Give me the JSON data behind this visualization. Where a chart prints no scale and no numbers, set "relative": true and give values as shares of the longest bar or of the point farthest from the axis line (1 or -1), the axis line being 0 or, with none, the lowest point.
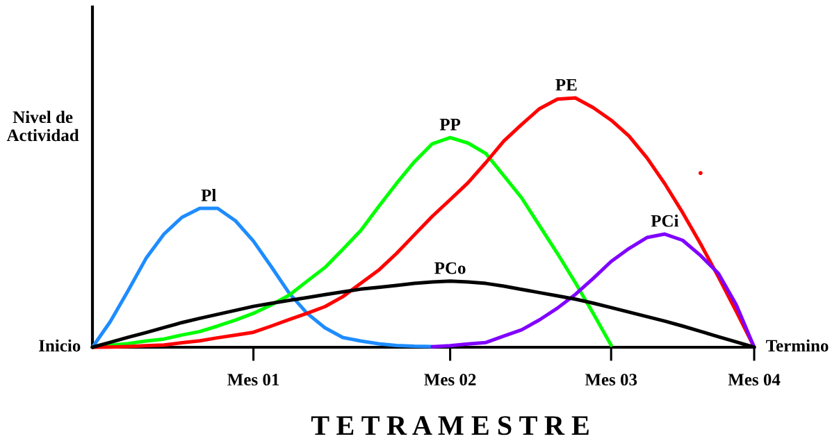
{
  "chart_data": {
    "type": "line",
    "relative": true,
    "xlabel": "T E T R A M E S T R E",
    "ylabel": "Nivel de\nActividad",
    "tick_labels": "x",
    "categories": [
      null,
      null,
      null,
      null,
      null,
      null,
      null,
      null,
      null,
      "Mes 01",
      null,
      null,
      null,
      null,
      null,
      null,
      null,
      null,
      null,
      null,
      "Mes 02",
      null,
      null,
      null,
      null,
      null,
      null,
      null,
      null,
      "Mes 03",
      null,
      null,
      null,
      null,
      null,
      null,
      null,
      "Mes 04"
    ],
    "annotations": [
      "Inicio",
      "Termino"
    ],
    "series": [
      {
        "name": "Pl",
        "color": "#1e8cff",
        "values": [
          0,
          0.103,
          0.228,
          0.357,
          0.454,
          0.521,
          0.557,
          0.557,
          0.507,
          0.426,
          0.323,
          0.217,
          0.136,
          0.078,
          0.039,
          0.025,
          0.014,
          0.007,
          0.004,
          0.003,
          null,
          null,
          null,
          null,
          null,
          null,
          null,
          null,
          null,
          null,
          null,
          null,
          null,
          null,
          null,
          null,
          null,
          null
        ]
      },
      {
        "name": "PP",
        "color": "#00ff00",
        "values": [
          0,
          0.008,
          0.015,
          0.025,
          0.033,
          0.049,
          0.063,
          0.085,
          0.109,
          0.136,
          0.17,
          0.209,
          0.265,
          0.32,
          0.393,
          0.468,
          0.564,
          0.657,
          0.744,
          0.816,
          0.841,
          0.819,
          0.777,
          0.688,
          0.599,
          0.487,
          0.376,
          0.259,
          0.136,
          0.008,
          null,
          null,
          null,
          null,
          null,
          null,
          null,
          null
        ]
      },
      {
        "name": "PE",
        "color": "#ff0000",
        "values": [
          0,
          0.001,
          0.003,
          0.006,
          0.009,
          0.018,
          0.026,
          0.038,
          0.049,
          0.06,
          0.085,
          0.111,
          0.136,
          0.163,
          0.203,
          0.256,
          0.309,
          0.376,
          0.451,
          0.525,
          0.592,
          0.66,
          0.741,
          0.827,
          0.894,
          0.957,
          0.995,
          1,
          0.961,
          0.911,
          0.847,
          0.76,
          0.656,
          0.54,
          0.415,
          0.282,
          0.143,
          0
        ]
      },
      {
        "name": "PCi",
        "color": "#8000ff",
        "values": [
          null,
          null,
          null,
          null,
          null,
          null,
          null,
          null,
          null,
          null,
          null,
          null,
          null,
          null,
          null,
          null,
          null,
          null,
          null,
          0.002,
          0.006,
          0.013,
          0.019,
          0.045,
          0.07,
          0.11,
          0.157,
          0.212,
          0.276,
          0.344,
          0.396,
          0.44,
          0.454,
          0.429,
          0.368,
          0.296,
          0.17,
          0
        ]
      },
      {
        "name": "PCo",
        "color": "#000000",
        "values": [
          0,
          0.02,
          0.04,
          0.059,
          0.079,
          0.099,
          0.116,
          0.132,
          0.148,
          0.164,
          0.176,
          0.188,
          0.199,
          0.211,
          0.222,
          0.233,
          0.24,
          0.248,
          0.256,
          0.262,
          0.265,
          0.262,
          0.256,
          0.245,
          0.232,
          0.219,
          0.206,
          0.193,
          0.177,
          0.159,
          0.141,
          0.123,
          0.105,
          0.085,
          0.064,
          0.042,
          0.021,
          0
        ]
      },
      {
        "type": "scatter",
        "color": "#ff0000",
        "values": [
          null,
          null,
          null,
          null,
          null,
          null,
          null,
          null,
          null,
          null,
          null,
          null,
          null,
          null,
          null,
          null,
          null,
          null,
          null,
          null,
          null,
          null,
          null,
          null,
          null,
          null,
          null,
          null,
          null,
          null,
          null,
          null,
          null,
          null,
          0.699,
          null,
          null,
          null
        ]
      }
    ]
  }
}
